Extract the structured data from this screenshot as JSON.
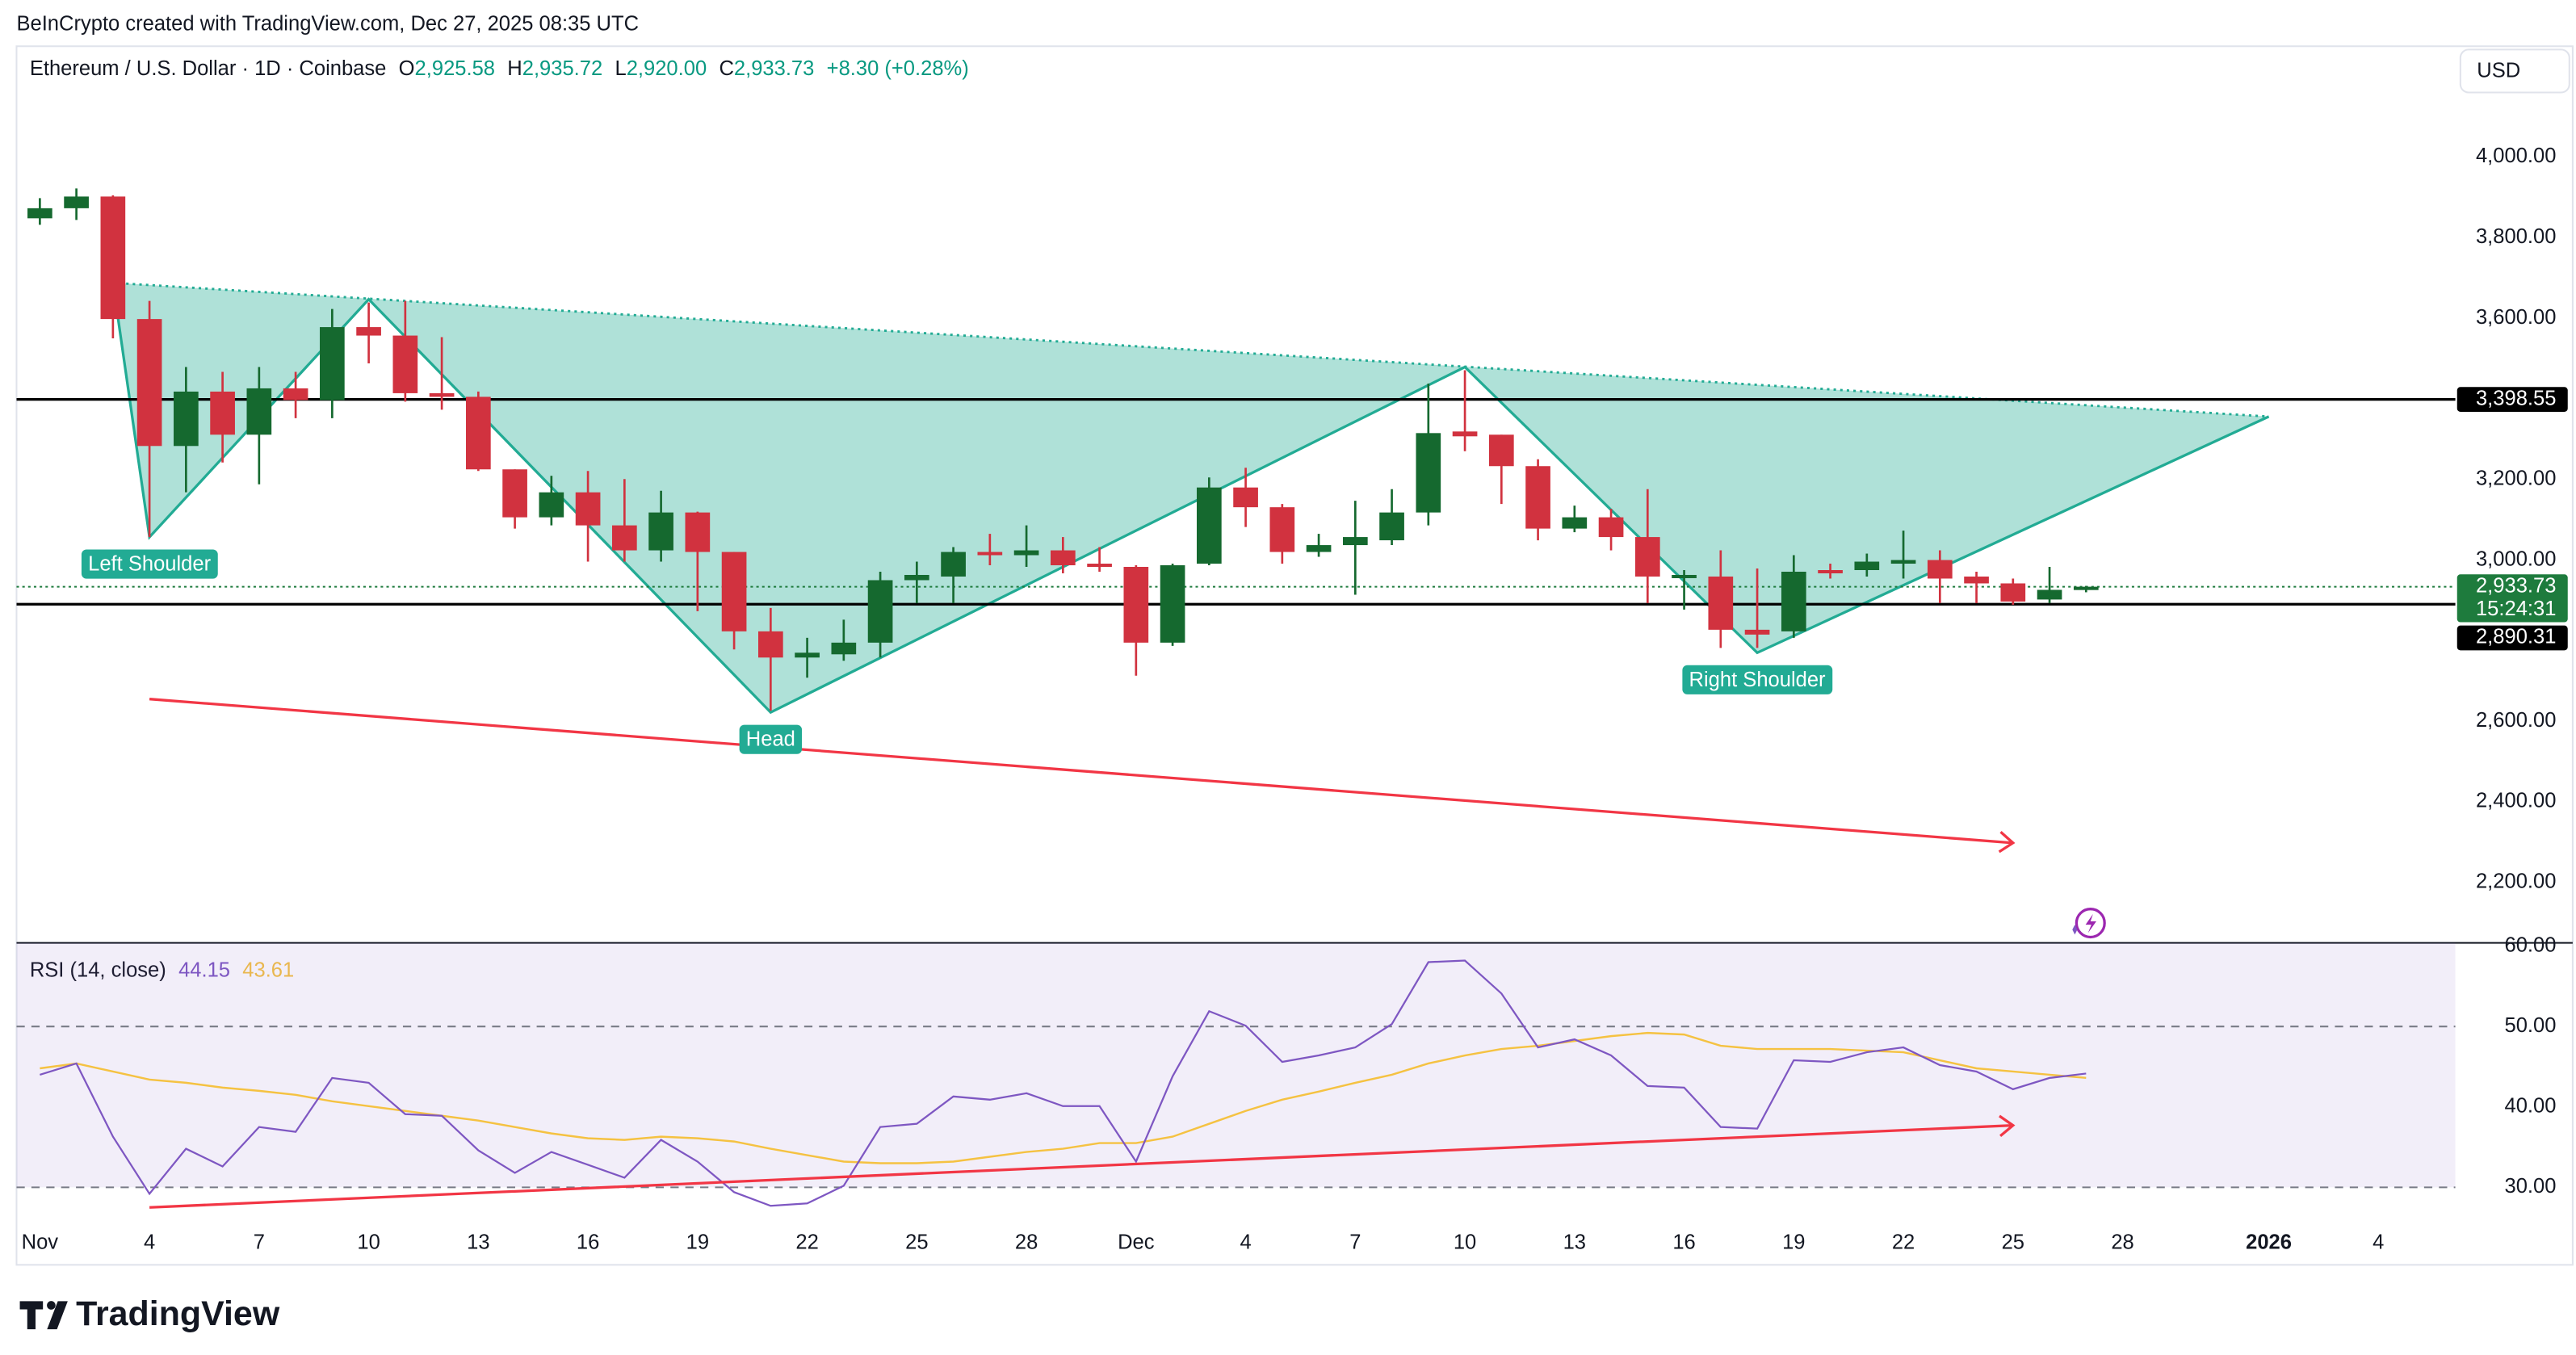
{
  "caption": "BeInCrypto created with TradingView.com, Dec 27, 2025 08:35 UTC",
  "currency": "USD",
  "logo": "TradingView",
  "chart_data": [
    {
      "type": "candlestick",
      "title": "Ethereum / U.S. Dollar · 1D · Coinbase",
      "ohlc_header": [
        {
          "key": "O",
          "text": "2,925.58"
        },
        {
          "key": "H",
          "text": "2,935.72"
        },
        {
          "key": "L",
          "text": "2,920.00"
        },
        {
          "key": "C",
          "text": "2,933.73"
        }
      ],
      "change": "+8.30 (+0.28%)",
      "up_color": "#15692f",
      "down_color": "#d1323f",
      "header_color": "#089981",
      "x": [
        "2025-11-01",
        "2025-11-02",
        "2025-11-03",
        "2025-11-04",
        "2025-11-05",
        "2025-11-06",
        "2025-11-07",
        "2025-11-08",
        "2025-11-09",
        "2025-11-10",
        "2025-11-11",
        "2025-11-12",
        "2025-11-13",
        "2025-11-14",
        "2025-11-15",
        "2025-11-16",
        "2025-11-17",
        "2025-11-18",
        "2025-11-19",
        "2025-11-20",
        "2025-11-21",
        "2025-11-22",
        "2025-11-23",
        "2025-11-24",
        "2025-11-25",
        "2025-11-26",
        "2025-11-27",
        "2025-11-28",
        "2025-11-29",
        "2025-11-30",
        "2025-12-01",
        "2025-12-02",
        "2025-12-03",
        "2025-12-04",
        "2025-12-05",
        "2025-12-06",
        "2025-12-07",
        "2025-12-08",
        "2025-12-09",
        "2025-12-10",
        "2025-12-11",
        "2025-12-12",
        "2025-12-13",
        "2025-12-14",
        "2025-12-15",
        "2025-12-16",
        "2025-12-17",
        "2025-12-18",
        "2025-12-19",
        "2025-12-20",
        "2025-12-21",
        "2025-12-22",
        "2025-12-23",
        "2025-12-24",
        "2025-12-25",
        "2025-12-26",
        "2025-12-27"
      ],
      "open": [
        3848,
        3873,
        3902,
        3598,
        3283,
        3418,
        3311,
        3426,
        3397,
        3578,
        3557,
        3414,
        3405,
        3225,
        3106,
        3168,
        3086,
        3024,
        3118,
        3020,
        2823,
        2758,
        2766,
        2795,
        2950,
        2959,
        3020,
        3012,
        3024,
        2991,
        2983,
        2795,
        2991,
        3180,
        3131,
        3020,
        3037,
        3049,
        3118,
        3319,
        3311,
        3233,
        3078,
        3106,
        3057,
        2955,
        2959,
        2827,
        2823,
        2975,
        2975,
        2991,
        3000,
        2959,
        2942,
        2902,
        2925.58
      ],
      "high": [
        3898,
        3922,
        3905,
        3643,
        3479,
        3467,
        3479,
        3467,
        3623,
        3639,
        3643,
        3553,
        3418,
        3225,
        3209,
        3221,
        3201,
        3172,
        3120,
        3020,
        2881,
        2807,
        2852,
        2971,
        2996,
        3032,
        3065,
        3086,
        3057,
        3032,
        2987,
        2991,
        3205,
        3229,
        3139,
        3065,
        3147,
        3176,
        3438,
        3471,
        3311,
        3250,
        3135,
        3127,
        3176,
        2975,
        3024,
        2979,
        3012,
        2991,
        3016,
        3073,
        3024,
        2971,
        2954,
        2983,
        2935.72
      ],
      "low": [
        3832,
        3844,
        3550,
        3057,
        3168,
        3242,
        3188,
        3352,
        3352,
        3488,
        3393,
        3373,
        3221,
        3078,
        3086,
        2996,
        2996,
        2996,
        2873,
        2778,
        2626,
        2708,
        2750,
        2758,
        2893,
        2893,
        2987,
        2983,
        2967,
        2971,
        2713,
        2787,
        2987,
        3082,
        2991,
        3008,
        2914,
        3037,
        3086,
        3270,
        3139,
        3049,
        3069,
        3024,
        2893,
        2877,
        2782,
        2782,
        2807,
        2954,
        2959,
        2954,
        2893,
        2893,
        2889,
        2893,
        2920
      ],
      "close": [
        3873,
        3902,
        3598,
        3283,
        3418,
        3311,
        3426,
        3397,
        3578,
        3557,
        3414,
        3405,
        3225,
        3106,
        3168,
        3086,
        3024,
        3118,
        3020,
        2823,
        2758,
        2770,
        2795,
        2950,
        2963,
        3020,
        3012,
        3024,
        2987,
        2983,
        2795,
        2987,
        3180,
        3131,
        3020,
        3037,
        3057,
        3118,
        3315,
        3307,
        3233,
        3078,
        3106,
        3057,
        2959,
        2963,
        2827,
        2815,
        2971,
        2967,
        2996,
        3000,
        2954,
        2942,
        2897,
        2926,
        2933.73
      ],
      "xlim": [
        "2025-10-31",
        "2026-01-06"
      ],
      "xticks": [
        {
          "value": "2025-11-01",
          "label": "Nov"
        },
        {
          "value": "2025-11-04",
          "label": "4"
        },
        {
          "value": "2025-11-07",
          "label": "7"
        },
        {
          "value": "2025-11-10",
          "label": "10"
        },
        {
          "value": "2025-11-13",
          "label": "13"
        },
        {
          "value": "2025-11-16",
          "label": "16"
        },
        {
          "value": "2025-11-19",
          "label": "19"
        },
        {
          "value": "2025-11-22",
          "label": "22"
        },
        {
          "value": "2025-11-25",
          "label": "25"
        },
        {
          "value": "2025-11-28",
          "label": "28"
        },
        {
          "value": "2025-12-01",
          "label": "Dec"
        },
        {
          "value": "2025-12-04",
          "label": "4"
        },
        {
          "value": "2025-12-07",
          "label": "7"
        },
        {
          "value": "2025-12-10",
          "label": "10"
        },
        {
          "value": "2025-12-13",
          "label": "13"
        },
        {
          "value": "2025-12-16",
          "label": "16"
        },
        {
          "value": "2025-12-19",
          "label": "19"
        },
        {
          "value": "2025-12-22",
          "label": "22"
        },
        {
          "value": "2025-12-25",
          "label": "25"
        },
        {
          "value": "2025-12-28",
          "label": "28"
        },
        {
          "value": "2026-01-01",
          "label": "2026"
        },
        {
          "value": "2026-01-04",
          "label": "4"
        }
      ],
      "ylim": [
        2050,
        4275
      ],
      "yticks": [
        {
          "value": 4000,
          "label": "4,000.00"
        },
        {
          "value": 3800,
          "label": "3,800.00"
        },
        {
          "value": 3600,
          "label": "3,600.00"
        },
        {
          "value": 3400,
          "label": "3,400.00"
        },
        {
          "value": 3200,
          "label": "3,200.00"
        },
        {
          "value": 3000,
          "label": "3,000.00"
        },
        {
          "value": 2800,
          "label": "2,800.00"
        },
        {
          "value": 2600,
          "label": "2,600.00"
        },
        {
          "value": 2400,
          "label": "2,400.00"
        },
        {
          "value": 2200,
          "label": "2,200.00"
        }
      ],
      "grid": false,
      "price_lines": [
        {
          "value": 3398.55,
          "label": "3,398.55"
        },
        {
          "value": 2890.31,
          "label": "2,890.31"
        }
      ],
      "price_line_color": "#000000",
      "last_price": {
        "value": 2933.73,
        "label": "2,933.73",
        "countdown": "15:24:31",
        "color": "#1e7b3d"
      },
      "pattern": {
        "color": "#22ab94",
        "x": [
          "2025-11-03",
          "2025-11-04",
          "2025-11-10",
          "2025-11-21",
          "2025-12-10",
          "2025-12-18",
          "2026-01-01"
        ],
        "values": [
          3688,
          3057,
          3647,
          2622,
          3479,
          2770,
          3356
        ],
        "labels": [
          null,
          "Left Shoulder",
          null,
          "Head",
          null,
          "Right Shoulder",
          null
        ]
      },
      "arrows": [
        {
          "x": [
            "2025-11-04",
            "2025-12-25"
          ],
          "values": [
            2655,
            2298
          ],
          "color": "#f23645"
        }
      ]
    },
    {
      "type": "line",
      "title": "RSI (14, close)",
      "band": [
        30,
        70
      ],
      "band_color": "#7e57c2",
      "levels": [
        50,
        30
      ],
      "ylim": [
        25.7,
        60.4
      ],
      "yticks": [
        {
          "value": 60,
          "label": "60.00"
        },
        {
          "value": 50,
          "label": "50.00"
        },
        {
          "value": 40,
          "label": "40.00"
        },
        {
          "value": 30,
          "label": "30.00"
        }
      ],
      "series": [
        {
          "color": "#7e57c2",
          "values": [
            44.0,
            45.4,
            36.3,
            29.2,
            34.8,
            32.6,
            37.5,
            36.9,
            43.6,
            43.0,
            39.1,
            38.9,
            34.6,
            31.8,
            34.4,
            32.8,
            31.2,
            35.9,
            33.2,
            29.4,
            27.7,
            28.0,
            30.2,
            37.5,
            37.9,
            41.3,
            40.9,
            41.7,
            40.1,
            40.1,
            33.2,
            43.8,
            51.9,
            50.1,
            45.6,
            46.4,
            47.4,
            50.3,
            58.0,
            58.2,
            54.1,
            47.4,
            48.4,
            46.4,
            42.6,
            42.4,
            37.5,
            37.3,
            45.8,
            45.6,
            46.8,
            47.4,
            45.2,
            44.4,
            42.2,
            43.6,
            44.15
          ]
        },
        {
          "color": "#f5c242",
          "values": [
            44.8,
            45.4,
            44.4,
            43.4,
            43.0,
            42.4,
            42.0,
            41.5,
            40.7,
            40.1,
            39.5,
            38.9,
            38.3,
            37.5,
            36.7,
            36.1,
            35.9,
            36.3,
            36.1,
            35.7,
            34.8,
            34.0,
            33.2,
            33.0,
            33.0,
            33.2,
            33.8,
            34.4,
            34.8,
            35.5,
            35.5,
            36.3,
            37.9,
            39.5,
            40.9,
            41.9,
            43.0,
            44.0,
            45.4,
            46.4,
            47.2,
            47.6,
            48.2,
            48.8,
            49.2,
            49.0,
            47.6,
            47.2,
            47.2,
            47.2,
            47.0,
            46.8,
            45.8,
            44.8,
            44.4,
            44.0,
            43.61
          ]
        }
      ],
      "arrows": [
        {
          "x": [
            "2025-11-04",
            "2025-12-25"
          ],
          "values": [
            27.5,
            37.7
          ],
          "color": "#f23645"
        }
      ]
    }
  ]
}
